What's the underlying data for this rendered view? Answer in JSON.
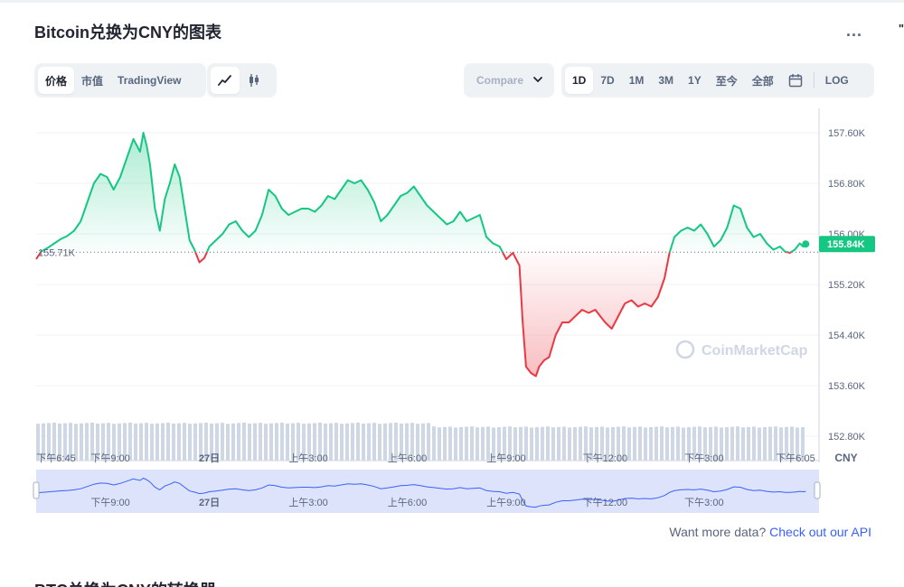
{
  "title": "Bitcoin兑换为CNY的图表",
  "more_label": "...",
  "edge_mark": "\"",
  "view_tabs": [
    {
      "label": "价格",
      "active": true
    },
    {
      "label": "市值",
      "active": false
    },
    {
      "label": "TradingView",
      "active": false
    }
  ],
  "chart_type_icons": [
    "line-chart-icon",
    "candlestick-icon"
  ],
  "compare": {
    "label": "Compare",
    "icon": "chevron-down-icon"
  },
  "ranges": [
    {
      "label": "1D",
      "active": true
    },
    {
      "label": "7D",
      "active": false
    },
    {
      "label": "1M",
      "active": false
    },
    {
      "label": "3M",
      "active": false
    },
    {
      "label": "1Y",
      "active": false
    },
    {
      "label": "至今",
      "active": false
    },
    {
      "label": "全部",
      "active": false
    }
  ],
  "calendar_icon": "calendar-icon",
  "log_label": "LOG",
  "api": {
    "text": "Want more data?",
    "link": "Check out our API"
  },
  "section2_title": "BTC兑换为CNY的转换器",
  "colors": {
    "up": "#16c784",
    "down": "#ea3943",
    "volume": "#cfd6e4",
    "nav_fill": "#dde3fb",
    "nav_line": "#3861fb"
  },
  "chart_data": {
    "type": "area",
    "currency_label": "CNY",
    "y_ticks": [
      "157.60K",
      "156.80K",
      "156.00K",
      "155.20K",
      "154.40K",
      "153.60K",
      "152.80K"
    ],
    "y_tick_values": [
      157.6,
      156.8,
      156.0,
      155.2,
      154.4,
      153.6,
      152.8
    ],
    "ylim": [
      152.8,
      157.6
    ],
    "x_range": [
      18.75,
      42.1
    ],
    "x_ticks": [
      {
        "label": "下午6:45",
        "t": 18.75
      },
      {
        "label": "下午9:00",
        "t": 21.0
      },
      {
        "label": "27日",
        "t": 24.0
      },
      {
        "label": "上午3:00",
        "t": 27.0
      },
      {
        "label": "上午6:00",
        "t": 30.0
      },
      {
        "label": "上午9:00",
        "t": 33.0
      },
      {
        "label": "下午12:00",
        "t": 36.0
      },
      {
        "label": "下午3:00",
        "t": 39.0
      },
      {
        "label": "下午6:05",
        "t": 42.08
      }
    ],
    "reference": {
      "label": "155.71K",
      "value": 155.71
    },
    "current": {
      "label": "155.84K",
      "value": 155.84
    },
    "series": [
      {
        "values": [
          [
            18.75,
            155.6
          ],
          [
            18.9,
            155.72
          ],
          [
            19.1,
            155.78
          ],
          [
            19.3,
            155.85
          ],
          [
            19.5,
            155.92
          ],
          [
            19.7,
            155.97
          ],
          [
            19.9,
            156.05
          ],
          [
            20.1,
            156.2
          ],
          [
            20.3,
            156.5
          ],
          [
            20.5,
            156.8
          ],
          [
            20.7,
            156.95
          ],
          [
            20.9,
            156.9
          ],
          [
            21.1,
            156.7
          ],
          [
            21.3,
            156.9
          ],
          [
            21.5,
            157.2
          ],
          [
            21.7,
            157.5
          ],
          [
            21.9,
            157.3
          ],
          [
            22.0,
            157.6
          ],
          [
            22.1,
            157.4
          ],
          [
            22.2,
            157.1
          ],
          [
            22.35,
            156.4
          ],
          [
            22.5,
            156.05
          ],
          [
            22.65,
            156.55
          ],
          [
            22.8,
            156.8
          ],
          [
            22.95,
            157.1
          ],
          [
            23.1,
            156.9
          ],
          [
            23.25,
            156.4
          ],
          [
            23.4,
            155.9
          ],
          [
            23.55,
            155.75
          ],
          [
            23.7,
            155.55
          ],
          [
            23.85,
            155.62
          ],
          [
            24.0,
            155.8
          ],
          [
            24.2,
            155.9
          ],
          [
            24.4,
            156.0
          ],
          [
            24.6,
            156.15
          ],
          [
            24.8,
            156.2
          ],
          [
            25.0,
            156.05
          ],
          [
            25.2,
            155.95
          ],
          [
            25.4,
            156.05
          ],
          [
            25.6,
            156.3
          ],
          [
            25.8,
            156.7
          ],
          [
            26.0,
            156.6
          ],
          [
            26.2,
            156.4
          ],
          [
            26.4,
            156.3
          ],
          [
            26.6,
            156.35
          ],
          [
            26.8,
            156.4
          ],
          [
            27.0,
            156.4
          ],
          [
            27.2,
            156.35
          ],
          [
            27.4,
            156.45
          ],
          [
            27.6,
            156.6
          ],
          [
            27.8,
            156.55
          ],
          [
            28.0,
            156.7
          ],
          [
            28.2,
            156.85
          ],
          [
            28.4,
            156.8
          ],
          [
            28.6,
            156.85
          ],
          [
            28.8,
            156.7
          ],
          [
            29.0,
            156.5
          ],
          [
            29.2,
            156.2
          ],
          [
            29.4,
            156.3
          ],
          [
            29.6,
            156.45
          ],
          [
            29.8,
            156.6
          ],
          [
            30.0,
            156.65
          ],
          [
            30.2,
            156.75
          ],
          [
            30.4,
            156.6
          ],
          [
            30.6,
            156.45
          ],
          [
            30.8,
            156.35
          ],
          [
            31.0,
            156.25
          ],
          [
            31.2,
            156.15
          ],
          [
            31.4,
            156.2
          ],
          [
            31.6,
            156.35
          ],
          [
            31.8,
            156.2
          ],
          [
            32.0,
            156.25
          ],
          [
            32.2,
            156.3
          ],
          [
            32.4,
            155.95
          ],
          [
            32.6,
            155.85
          ],
          [
            32.8,
            155.8
          ],
          [
            33.0,
            155.6
          ],
          [
            33.2,
            155.7
          ],
          [
            33.4,
            155.5
          ],
          [
            33.5,
            154.6
          ],
          [
            33.6,
            153.9
          ],
          [
            33.75,
            153.8
          ],
          [
            33.9,
            153.75
          ],
          [
            34.0,
            153.9
          ],
          [
            34.15,
            154.0
          ],
          [
            34.3,
            154.05
          ],
          [
            34.5,
            154.4
          ],
          [
            34.7,
            154.6
          ],
          [
            34.9,
            154.6
          ],
          [
            35.1,
            154.7
          ],
          [
            35.3,
            154.8
          ],
          [
            35.5,
            154.75
          ],
          [
            35.7,
            154.8
          ],
          [
            35.85,
            154.7
          ],
          [
            36.0,
            154.6
          ],
          [
            36.2,
            154.5
          ],
          [
            36.4,
            154.7
          ],
          [
            36.6,
            154.9
          ],
          [
            36.8,
            154.95
          ],
          [
            37.0,
            154.85
          ],
          [
            37.2,
            154.9
          ],
          [
            37.4,
            154.85
          ],
          [
            37.6,
            155.0
          ],
          [
            37.8,
            155.3
          ],
          [
            37.95,
            155.7
          ],
          [
            38.1,
            155.95
          ],
          [
            38.3,
            156.05
          ],
          [
            38.5,
            156.1
          ],
          [
            38.7,
            156.05
          ],
          [
            38.9,
            156.15
          ],
          [
            39.1,
            156.0
          ],
          [
            39.3,
            155.8
          ],
          [
            39.5,
            155.9
          ],
          [
            39.7,
            156.1
          ],
          [
            39.9,
            156.45
          ],
          [
            40.1,
            156.4
          ],
          [
            40.3,
            156.1
          ],
          [
            40.5,
            155.95
          ],
          [
            40.7,
            156.0
          ],
          [
            40.9,
            155.85
          ],
          [
            41.1,
            155.75
          ],
          [
            41.3,
            155.8
          ],
          [
            41.45,
            155.72
          ],
          [
            41.6,
            155.7
          ],
          [
            41.75,
            155.75
          ],
          [
            41.9,
            155.85
          ],
          [
            42.0,
            155.8
          ],
          [
            42.08,
            155.84
          ]
        ]
      }
    ],
    "volume_level": 0.72,
    "navigator_ticks": [
      "下午9:00",
      "27日",
      "上午3:00",
      "上午6:00",
      "上午9:00",
      "下午12:00",
      "下午3:00"
    ],
    "watermark": "CoinMarketCap"
  }
}
